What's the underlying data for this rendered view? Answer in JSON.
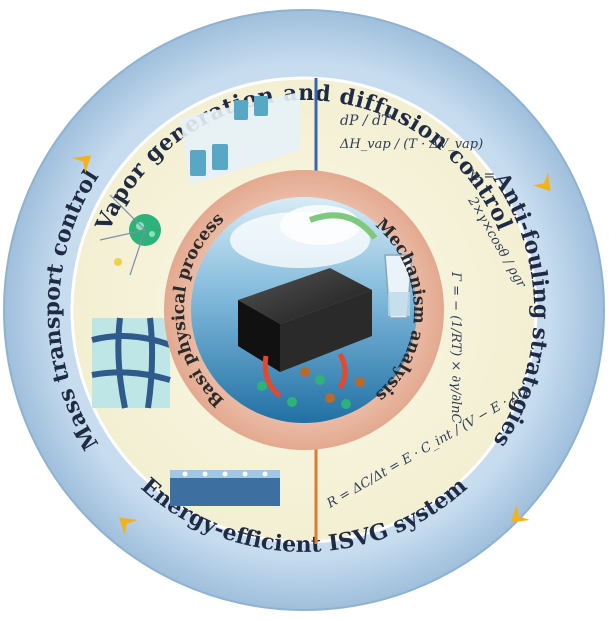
{
  "ring_labels": {
    "top": "Vapor generation and diffusion control",
    "right": "Anti-fouling strategies",
    "bottom": "Energy-efficient ISVG system",
    "left": "Mass transport control"
  },
  "inner_labels": {
    "left": "Basi physical process",
    "right": "Mechanism analysis"
  },
  "equations": {
    "clausius_lhs": "dP / dT",
    "clausius_rhs": "ΔH_vap / (T · ΔV_vap)",
    "capillary_lhs": "h =",
    "capillary_rhs": "2×γ×cosθ / ρgr",
    "gibbs": "Γ = − (1/RT) × ∂γ/∂lnC",
    "rate": "R = ΔC/Δt = E · C_int / (V − E · Δt)"
  },
  "colors": {
    "outer_ring": "#b5cfe6",
    "inner_fill": "#f7f4df",
    "core_ring": "#e9b9a4",
    "arrow": "#f2b21a",
    "divider_top": "#3a63b0",
    "divider_bottom": "#e07a2e",
    "label": "#1f2a44"
  },
  "icons": [
    "cycle-arrow-icon",
    "evaporator-block-icon",
    "water-glass-icon",
    "ion-particle-icon",
    "membrane-icon"
  ]
}
